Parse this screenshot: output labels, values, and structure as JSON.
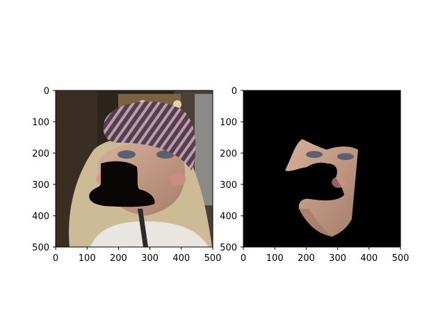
{
  "figure": {
    "background": "#ffffff",
    "panels": [
      {
        "id": "left",
        "kind": "photo-with-black-mask",
        "x_ticks": [
          "0",
          "100",
          "200",
          "300",
          "400",
          "500"
        ],
        "y_ticks": [
          "0",
          "100",
          "200",
          "300",
          "400",
          "500"
        ],
        "colors": {
          "mask": "#0a0606",
          "hat": "#5b3c4b",
          "hat_stripe": "#b79fb0",
          "hair": "#cdbb98",
          "skin": "#c79c84",
          "shirt": "#e9e6e1",
          "background": "#2c241d"
        }
      },
      {
        "id": "right",
        "kind": "segmented-face-on-black",
        "x_ticks": [
          "0",
          "100",
          "200",
          "300",
          "400",
          "500"
        ],
        "y_ticks": [
          "0",
          "100",
          "200",
          "300",
          "400",
          "500"
        ],
        "colors": {
          "background": "#000000",
          "skin": "#c49a84",
          "shadow": "#9b7566"
        }
      }
    ]
  }
}
